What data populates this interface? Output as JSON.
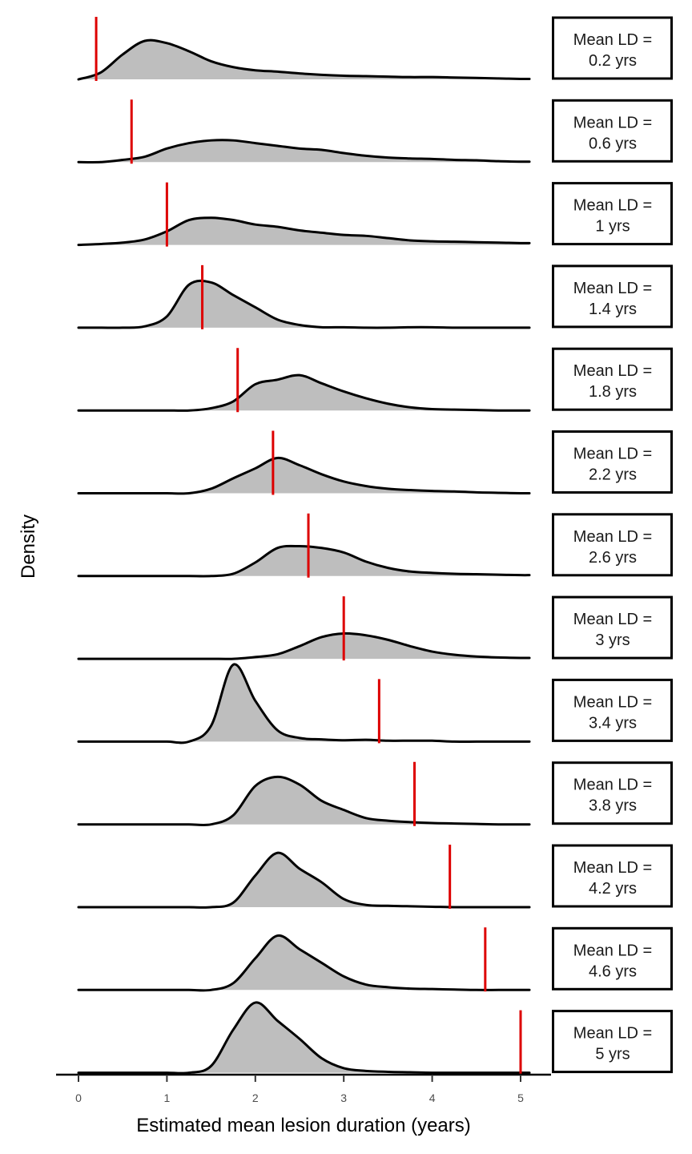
{
  "chart_data": {
    "type": "area",
    "xlabel": "Estimated mean lesion duration (years)",
    "ylabel": "Density",
    "xlim": [
      0,
      5.1
    ],
    "x_ticks": [
      0,
      1,
      2,
      3,
      4,
      5
    ],
    "x_tick_labels": [
      "0",
      "1",
      "2",
      "3",
      "4",
      "5"
    ],
    "grid": false,
    "fill_color": "#bebebe",
    "line_color": "#000000",
    "marker_color": "#dd0000",
    "x": [
      0,
      0.25,
      0.5,
      0.75,
      1,
      1.25,
      1.5,
      1.75,
      2,
      2.25,
      2.5,
      2.75,
      3,
      3.25,
      3.5,
      3.75,
      4,
      4.25,
      4.5,
      4.75,
      5,
      5.1
    ],
    "series": [
      {
        "strip_label": "Mean LD =\n0.2 yrs",
        "true_value": 0.2,
        "density": [
          0,
          0.15,
          0.55,
          0.85,
          0.8,
          0.62,
          0.4,
          0.27,
          0.2,
          0.17,
          0.13,
          0.1,
          0.08,
          0.07,
          0.06,
          0.05,
          0.05,
          0.04,
          0.03,
          0.02,
          0.01,
          0.01
        ]
      },
      {
        "strip_label": "Mean LD =\n0.6 yrs",
        "true_value": 0.6,
        "density": [
          0,
          0,
          0.05,
          0.12,
          0.3,
          0.42,
          0.48,
          0.48,
          0.42,
          0.36,
          0.3,
          0.27,
          0.2,
          0.14,
          0.1,
          0.08,
          0.07,
          0.05,
          0.04,
          0.02,
          0.01,
          0.01
        ]
      },
      {
        "strip_label": "Mean LD =\n1 yrs",
        "true_value": 1,
        "density": [
          0,
          0.02,
          0.05,
          0.12,
          0.3,
          0.55,
          0.6,
          0.55,
          0.45,
          0.4,
          0.32,
          0.27,
          0.22,
          0.2,
          0.15,
          0.1,
          0.08,
          0.07,
          0.06,
          0.05,
          0.04,
          0.04
        ]
      },
      {
        "strip_label": "Mean LD =\n1.4 yrs",
        "true_value": 1.4,
        "density": [
          0,
          0,
          0,
          0.03,
          0.25,
          0.95,
          1.0,
          0.72,
          0.45,
          0.18,
          0.06,
          0.01,
          0.01,
          0,
          0,
          0.01,
          0.01,
          0,
          0,
          0,
          0,
          0
        ]
      },
      {
        "strip_label": "Mean LD =\n1.8 yrs",
        "true_value": 1.8,
        "density": [
          0,
          0,
          0,
          0,
          0,
          0,
          0.05,
          0.2,
          0.58,
          0.68,
          0.78,
          0.6,
          0.42,
          0.27,
          0.15,
          0.07,
          0.03,
          0.02,
          0.01,
          0,
          0,
          0
        ]
      },
      {
        "strip_label": "Mean LD =\n2.2 yrs",
        "true_value": 2.2,
        "density": [
          0,
          0,
          0,
          0,
          0,
          0,
          0.1,
          0.33,
          0.55,
          0.78,
          0.62,
          0.42,
          0.26,
          0.16,
          0.1,
          0.07,
          0.05,
          0.04,
          0.02,
          0.01,
          0,
          0
        ]
      },
      {
        "strip_label": "Mean LD =\n2.6 yrs",
        "true_value": 2.6,
        "density": [
          0,
          0,
          0,
          0,
          0,
          0,
          0,
          0.05,
          0.3,
          0.62,
          0.66,
          0.62,
          0.52,
          0.32,
          0.18,
          0.1,
          0.07,
          0.05,
          0.04,
          0.03,
          0.02,
          0.02
        ]
      },
      {
        "strip_label": "Mean LD =\n3 yrs",
        "true_value": 3,
        "density": [
          0,
          0,
          0,
          0,
          0,
          0,
          0,
          0,
          0.04,
          0.1,
          0.28,
          0.48,
          0.56,
          0.52,
          0.42,
          0.28,
          0.16,
          0.09,
          0.05,
          0.03,
          0.02,
          0.02
        ]
      },
      {
        "strip_label": "Mean LD =\n3.4 yrs",
        "true_value": 3.4,
        "density": [
          0,
          0,
          0,
          0,
          0,
          0,
          0.35,
          1.7,
          0.9,
          0.25,
          0.08,
          0.05,
          0.03,
          0.04,
          0.02,
          0.02,
          0.02,
          0,
          0,
          0,
          0,
          0
        ]
      },
      {
        "strip_label": "Mean LD =\n3.8 yrs",
        "true_value": 3.8,
        "density": [
          0,
          0,
          0,
          0,
          0,
          0,
          0,
          0.2,
          0.85,
          1.05,
          0.88,
          0.52,
          0.32,
          0.14,
          0.08,
          0.05,
          0.03,
          0.02,
          0.01,
          0,
          0,
          0
        ]
      },
      {
        "strip_label": "Mean LD =\n4.2 yrs",
        "true_value": 4.2,
        "density": [
          0,
          0,
          0,
          0,
          0,
          0,
          0,
          0.1,
          0.7,
          1.2,
          0.85,
          0.55,
          0.18,
          0.05,
          0.03,
          0.02,
          0.01,
          0,
          0,
          0,
          0,
          0
        ]
      },
      {
        "strip_label": "Mean LD =\n4.6 yrs",
        "true_value": 4.6,
        "density": [
          0,
          0,
          0,
          0,
          0,
          0,
          0,
          0.15,
          0.7,
          1.2,
          0.9,
          0.6,
          0.3,
          0.12,
          0.06,
          0.03,
          0.02,
          0.01,
          0,
          0,
          0,
          0
        ]
      },
      {
        "strip_label": "Mean LD =\n5 yrs",
        "true_value": 5,
        "density": [
          0,
          0,
          0,
          0,
          0,
          0,
          0.15,
          0.95,
          1.55,
          1.15,
          0.75,
          0.32,
          0.1,
          0.04,
          0.02,
          0.01,
          0,
          0,
          0,
          0,
          0,
          0
        ]
      }
    ]
  }
}
